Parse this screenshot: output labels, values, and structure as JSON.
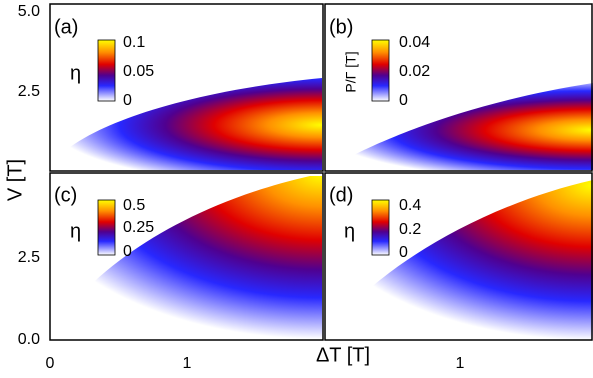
{
  "figure": {
    "y_label": "V [T]",
    "x_label": "ΔT [T]",
    "y_ticks_top": [
      "5.0",
      "2.5"
    ],
    "y_ticks_bottom": [
      "2.5",
      "0.0"
    ],
    "x_ticks_left": [
      "0",
      "1"
    ],
    "x_ticks_right": [
      "1"
    ],
    "panels": [
      {
        "label": "(a)",
        "colorbar": {
          "label": "η",
          "ticks": [
            "0.1",
            "0.05",
            "0"
          ]
        }
      },
      {
        "label": "(b)",
        "colorbar": {
          "label": "P/Γ [T]",
          "ticks": [
            "0.04",
            "0.02",
            "0"
          ]
        }
      },
      {
        "label": "(c)",
        "colorbar": {
          "label": "η",
          "ticks": [
            "0.5",
            "0.25",
            "0"
          ]
        }
      },
      {
        "label": "(d)",
        "colorbar": {
          "label": "η",
          "ticks": [
            "0.4",
            "0.2",
            "0"
          ]
        }
      }
    ]
  }
}
